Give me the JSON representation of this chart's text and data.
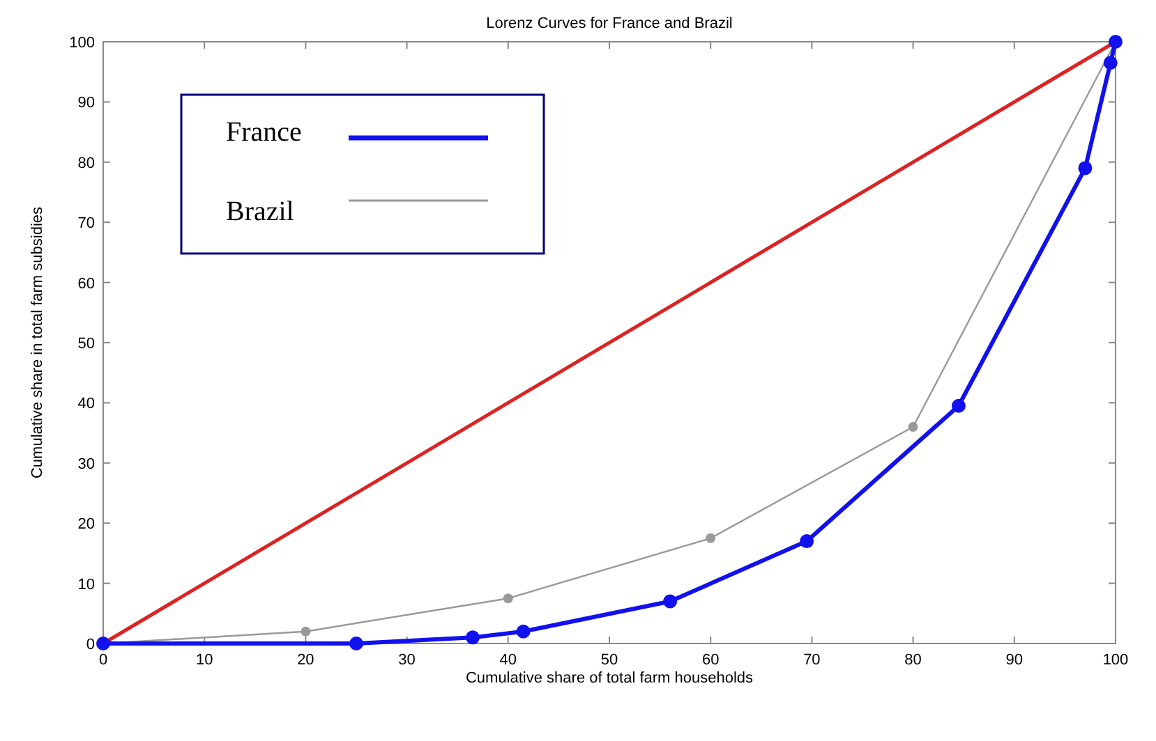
{
  "chart_data": {
    "type": "line",
    "title": "Lorenz Curves for France and Brazil",
    "xlabel": "Cumulative share of total farm households",
    "ylabel": "Cumulative share in total farm subsidies",
    "xlim": [
      0,
      100
    ],
    "ylim": [
      0,
      100
    ],
    "xticks": [
      0,
      10,
      20,
      30,
      40,
      50,
      60,
      70,
      80,
      90,
      100
    ],
    "yticks": [
      0,
      10,
      20,
      30,
      40,
      50,
      60,
      70,
      80,
      90,
      100
    ],
    "grid": false,
    "legend": "top left",
    "line_style": "solid",
    "series": [
      {
        "color": "#dd2222",
        "x": [
          0,
          100
        ],
        "values": [
          0,
          100
        ]
      },
      {
        "name": "Brazil",
        "color": "#999999",
        "marker": "circle",
        "x": [
          0,
          20,
          40,
          60,
          80,
          100
        ],
        "values": [
          0,
          2,
          7.5,
          17.5,
          36,
          100
        ]
      },
      {
        "name": "France",
        "color": "#1111ee",
        "marker": "circle",
        "x": [
          0,
          25,
          36.5,
          41.5,
          56,
          69.5,
          84.5,
          97,
          99.5,
          100
        ],
        "values": [
          0,
          0,
          1,
          2,
          7,
          17,
          39.5,
          79,
          96.5,
          100
        ]
      }
    ]
  }
}
